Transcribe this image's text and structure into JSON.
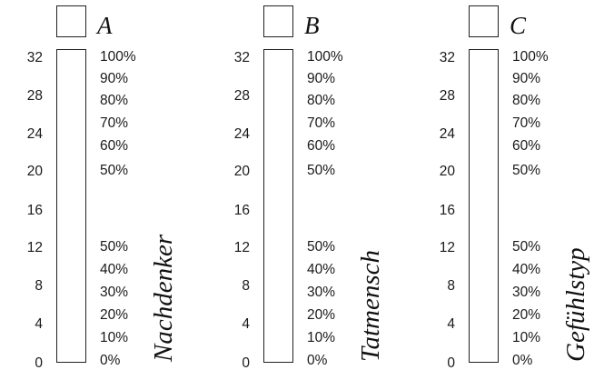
{
  "scale_values": [
    "32",
    "28",
    "24",
    "20",
    "16",
    "12",
    "8",
    "4",
    "0"
  ],
  "upper_percentages": [
    "100%",
    "90%",
    "80%",
    "70%",
    "60%",
    "50%"
  ],
  "lower_percentages": [
    "50%",
    "40%",
    "30%",
    "20%",
    "10%",
    "0%"
  ],
  "panels": [
    {
      "letter": "A",
      "label": "Nachdenker"
    },
    {
      "letter": "B",
      "label": "Tatmensch"
    },
    {
      "letter": "C",
      "label": "Gefühlstyp"
    }
  ]
}
